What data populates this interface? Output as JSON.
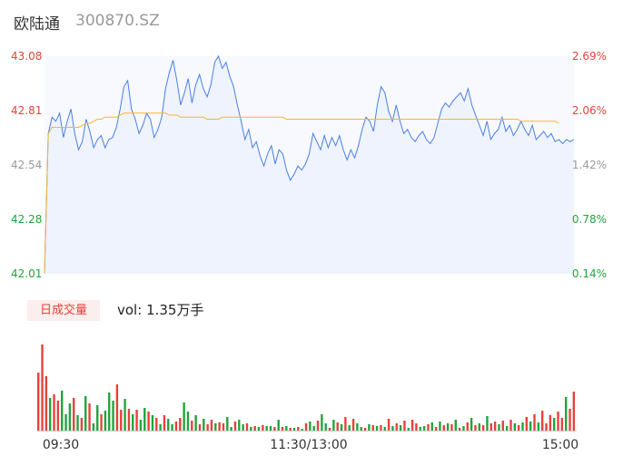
{
  "header": {
    "name": "欧陆通",
    "code": "300870.SZ"
  },
  "volume_badge": "日成交量",
  "volume_text": "vol: 1.35万手",
  "colors": {
    "price": "#4a7fe6",
    "avg": "#f5b82e",
    "up": "#e8413a",
    "down": "#20a43c",
    "neutral": "#999999"
  },
  "chart_data": [
    {
      "type": "line",
      "series": [
        {
          "values": [
            42.01,
            42.7,
            42.78,
            42.76,
            42.8,
            42.68,
            42.76,
            42.82,
            42.7,
            42.62,
            42.66,
            42.77,
            42.71,
            42.63,
            42.67,
            42.69,
            42.63,
            42.67,
            42.68,
            42.73,
            42.82,
            42.93,
            42.96,
            42.82,
            42.77,
            42.7,
            42.74,
            42.8,
            42.77,
            42.68,
            42.72,
            42.78,
            42.92,
            43.0,
            43.06,
            42.96,
            42.84,
            42.9,
            42.97,
            42.85,
            42.94,
            42.99,
            42.92,
            42.88,
            42.94,
            43.05,
            43.08,
            43.02,
            43.05,
            42.98,
            42.93,
            42.84,
            42.76,
            42.67,
            42.72,
            42.63,
            42.66,
            42.59,
            42.54,
            42.6,
            42.64,
            42.55,
            42.62,
            42.6,
            42.52,
            42.47,
            42.5,
            42.54,
            42.52,
            42.55,
            42.6,
            42.7,
            42.66,
            42.62,
            42.69,
            42.63,
            42.68,
            42.64,
            42.69,
            42.62,
            42.57,
            42.62,
            42.58,
            42.64,
            42.72,
            42.78,
            42.76,
            42.71,
            42.84,
            42.93,
            42.9,
            42.81,
            42.76,
            42.84,
            42.76,
            42.7,
            42.72,
            42.68,
            42.66,
            42.69,
            42.71,
            42.67,
            42.65,
            42.68,
            42.75,
            42.82,
            42.85,
            42.83,
            42.86,
            42.88,
            42.9,
            42.86,
            42.92,
            42.84,
            42.79,
            42.74,
            42.69,
            42.76,
            42.67,
            42.7,
            42.72,
            42.78,
            42.71,
            42.74,
            42.69,
            42.72,
            42.76,
            42.72,
            42.69,
            42.74,
            42.67,
            42.69,
            42.71,
            42.68,
            42.7,
            42.66,
            42.67,
            42.65,
            42.67,
            42.66,
            42.67
          ]
        },
        {
          "values": [
            42.01,
            42.7,
            42.73,
            42.73,
            42.73,
            42.73,
            42.73,
            42.73,
            42.73,
            42.73,
            42.74,
            42.75,
            42.75,
            42.76,
            42.77,
            42.77,
            42.78,
            42.78,
            42.78,
            42.78,
            42.79,
            42.8,
            42.8,
            42.8,
            42.8,
            42.8,
            42.8,
            42.8,
            42.8,
            42.8,
            42.8,
            42.8,
            42.8,
            42.79,
            42.79,
            42.79,
            42.78,
            42.78,
            42.78,
            42.78,
            42.78,
            42.78,
            42.78,
            42.77,
            42.77,
            42.77,
            42.77,
            42.78,
            42.78,
            42.78,
            42.78,
            42.78,
            42.78,
            42.78,
            42.78,
            42.78,
            42.78,
            42.78,
            42.78,
            42.78,
            42.78,
            42.78,
            42.78,
            42.78,
            42.77,
            42.77,
            42.77,
            42.77,
            42.77,
            42.77,
            42.77,
            42.77,
            42.77,
            42.77,
            42.77,
            42.77,
            42.77,
            42.77,
            42.77,
            42.77,
            42.77,
            42.77,
            42.77,
            42.77,
            42.77,
            42.77,
            42.77,
            42.77,
            42.77,
            42.77,
            42.77,
            42.77,
            42.77,
            42.77,
            42.77,
            42.77,
            42.77,
            42.77,
            42.77,
            42.77,
            42.77,
            42.77,
            42.77,
            42.77,
            42.77,
            42.77,
            42.77,
            42.77,
            42.77,
            42.77,
            42.77,
            42.77,
            42.77,
            42.77,
            42.77,
            42.77,
            42.77,
            42.77,
            42.77,
            42.77,
            42.77,
            42.77,
            42.77,
            42.77,
            42.77,
            42.77,
            42.76,
            42.76,
            42.76,
            42.76,
            42.76,
            42.76,
            42.76,
            42.76,
            42.76,
            42.76,
            42.75
          ]
        }
      ],
      "y_ticks": [
        "43.08",
        "42.81",
        "42.54",
        "42.28",
        "42.01"
      ],
      "y_right_ticks": [
        "2.69%",
        "2.06%",
        "1.42%",
        "0.78%",
        "0.14%"
      ],
      "ylim": [
        42.01,
        43.08
      ]
    },
    {
      "type": "bar",
      "x_ticks": [
        "09:30",
        "11:30/13:00",
        "15:00"
      ],
      "values": [
        64,
        95,
        60,
        36,
        40,
        33,
        44,
        18,
        30,
        36,
        17,
        14,
        38,
        30,
        8,
        28,
        18,
        22,
        42,
        33,
        51,
        23,
        35,
        24,
        18,
        23,
        12,
        25,
        21,
        17,
        14,
        7,
        17,
        13,
        7,
        10,
        14,
        31,
        21,
        11,
        17,
        7,
        13,
        7,
        12,
        8,
        9,
        8,
        15,
        4,
        10,
        12,
        7,
        8,
        4,
        5,
        4,
        6,
        5,
        5,
        4,
        12,
        4,
        5,
        3,
        3,
        4,
        2,
        8,
        10,
        5,
        11,
        18,
        8,
        3,
        12,
        9,
        7,
        15,
        6,
        13,
        8,
        4,
        3,
        7,
        6,
        5,
        6,
        4,
        13,
        5,
        8,
        6,
        11,
        3,
        12,
        8,
        4,
        5,
        7,
        9,
        4,
        10,
        6,
        8,
        7,
        12,
        3,
        5,
        9,
        14,
        6,
        8,
        6,
        16,
        8,
        10,
        7,
        11,
        5,
        12,
        8,
        6,
        9,
        15,
        10,
        18,
        9,
        22,
        8,
        17,
        14,
        21,
        14,
        37,
        24,
        43
      ],
      "directions": [
        "u",
        "u",
        "u",
        "d",
        "u",
        "u",
        "d",
        "d",
        "d",
        "u",
        "d",
        "u",
        "d",
        "u",
        "d",
        "d",
        "u",
        "d",
        "d",
        "d",
        "u",
        "u",
        "d",
        "u",
        "d",
        "u",
        "d",
        "d",
        "u",
        "d",
        "u",
        "d",
        "u",
        "d",
        "d",
        "u",
        "u",
        "d",
        "d",
        "u",
        "d",
        "u",
        "d",
        "u",
        "u",
        "d",
        "u",
        "u",
        "d",
        "d",
        "u",
        "d",
        "d",
        "u",
        "d",
        "u",
        "d",
        "u",
        "d",
        "d",
        "u",
        "d",
        "u",
        "d",
        "u",
        "d",
        "u",
        "d",
        "u",
        "d",
        "d",
        "u",
        "d",
        "d",
        "u",
        "d",
        "u",
        "d",
        "u",
        "d",
        "u",
        "d",
        "d",
        "u",
        "d",
        "u",
        "d",
        "u",
        "d",
        "u",
        "d",
        "u",
        "d",
        "u",
        "d",
        "u",
        "u",
        "d",
        "d",
        "u",
        "d",
        "u",
        "d",
        "u",
        "d",
        "u",
        "d",
        "u",
        "d",
        "u",
        "d",
        "u",
        "d",
        "u",
        "d",
        "u",
        "u",
        "d",
        "u",
        "d",
        "u",
        "d",
        "u",
        "d",
        "u",
        "d",
        "u",
        "d",
        "u",
        "u",
        "u",
        "d",
        "u",
        "u",
        "d",
        "u",
        "u"
      ]
    }
  ]
}
